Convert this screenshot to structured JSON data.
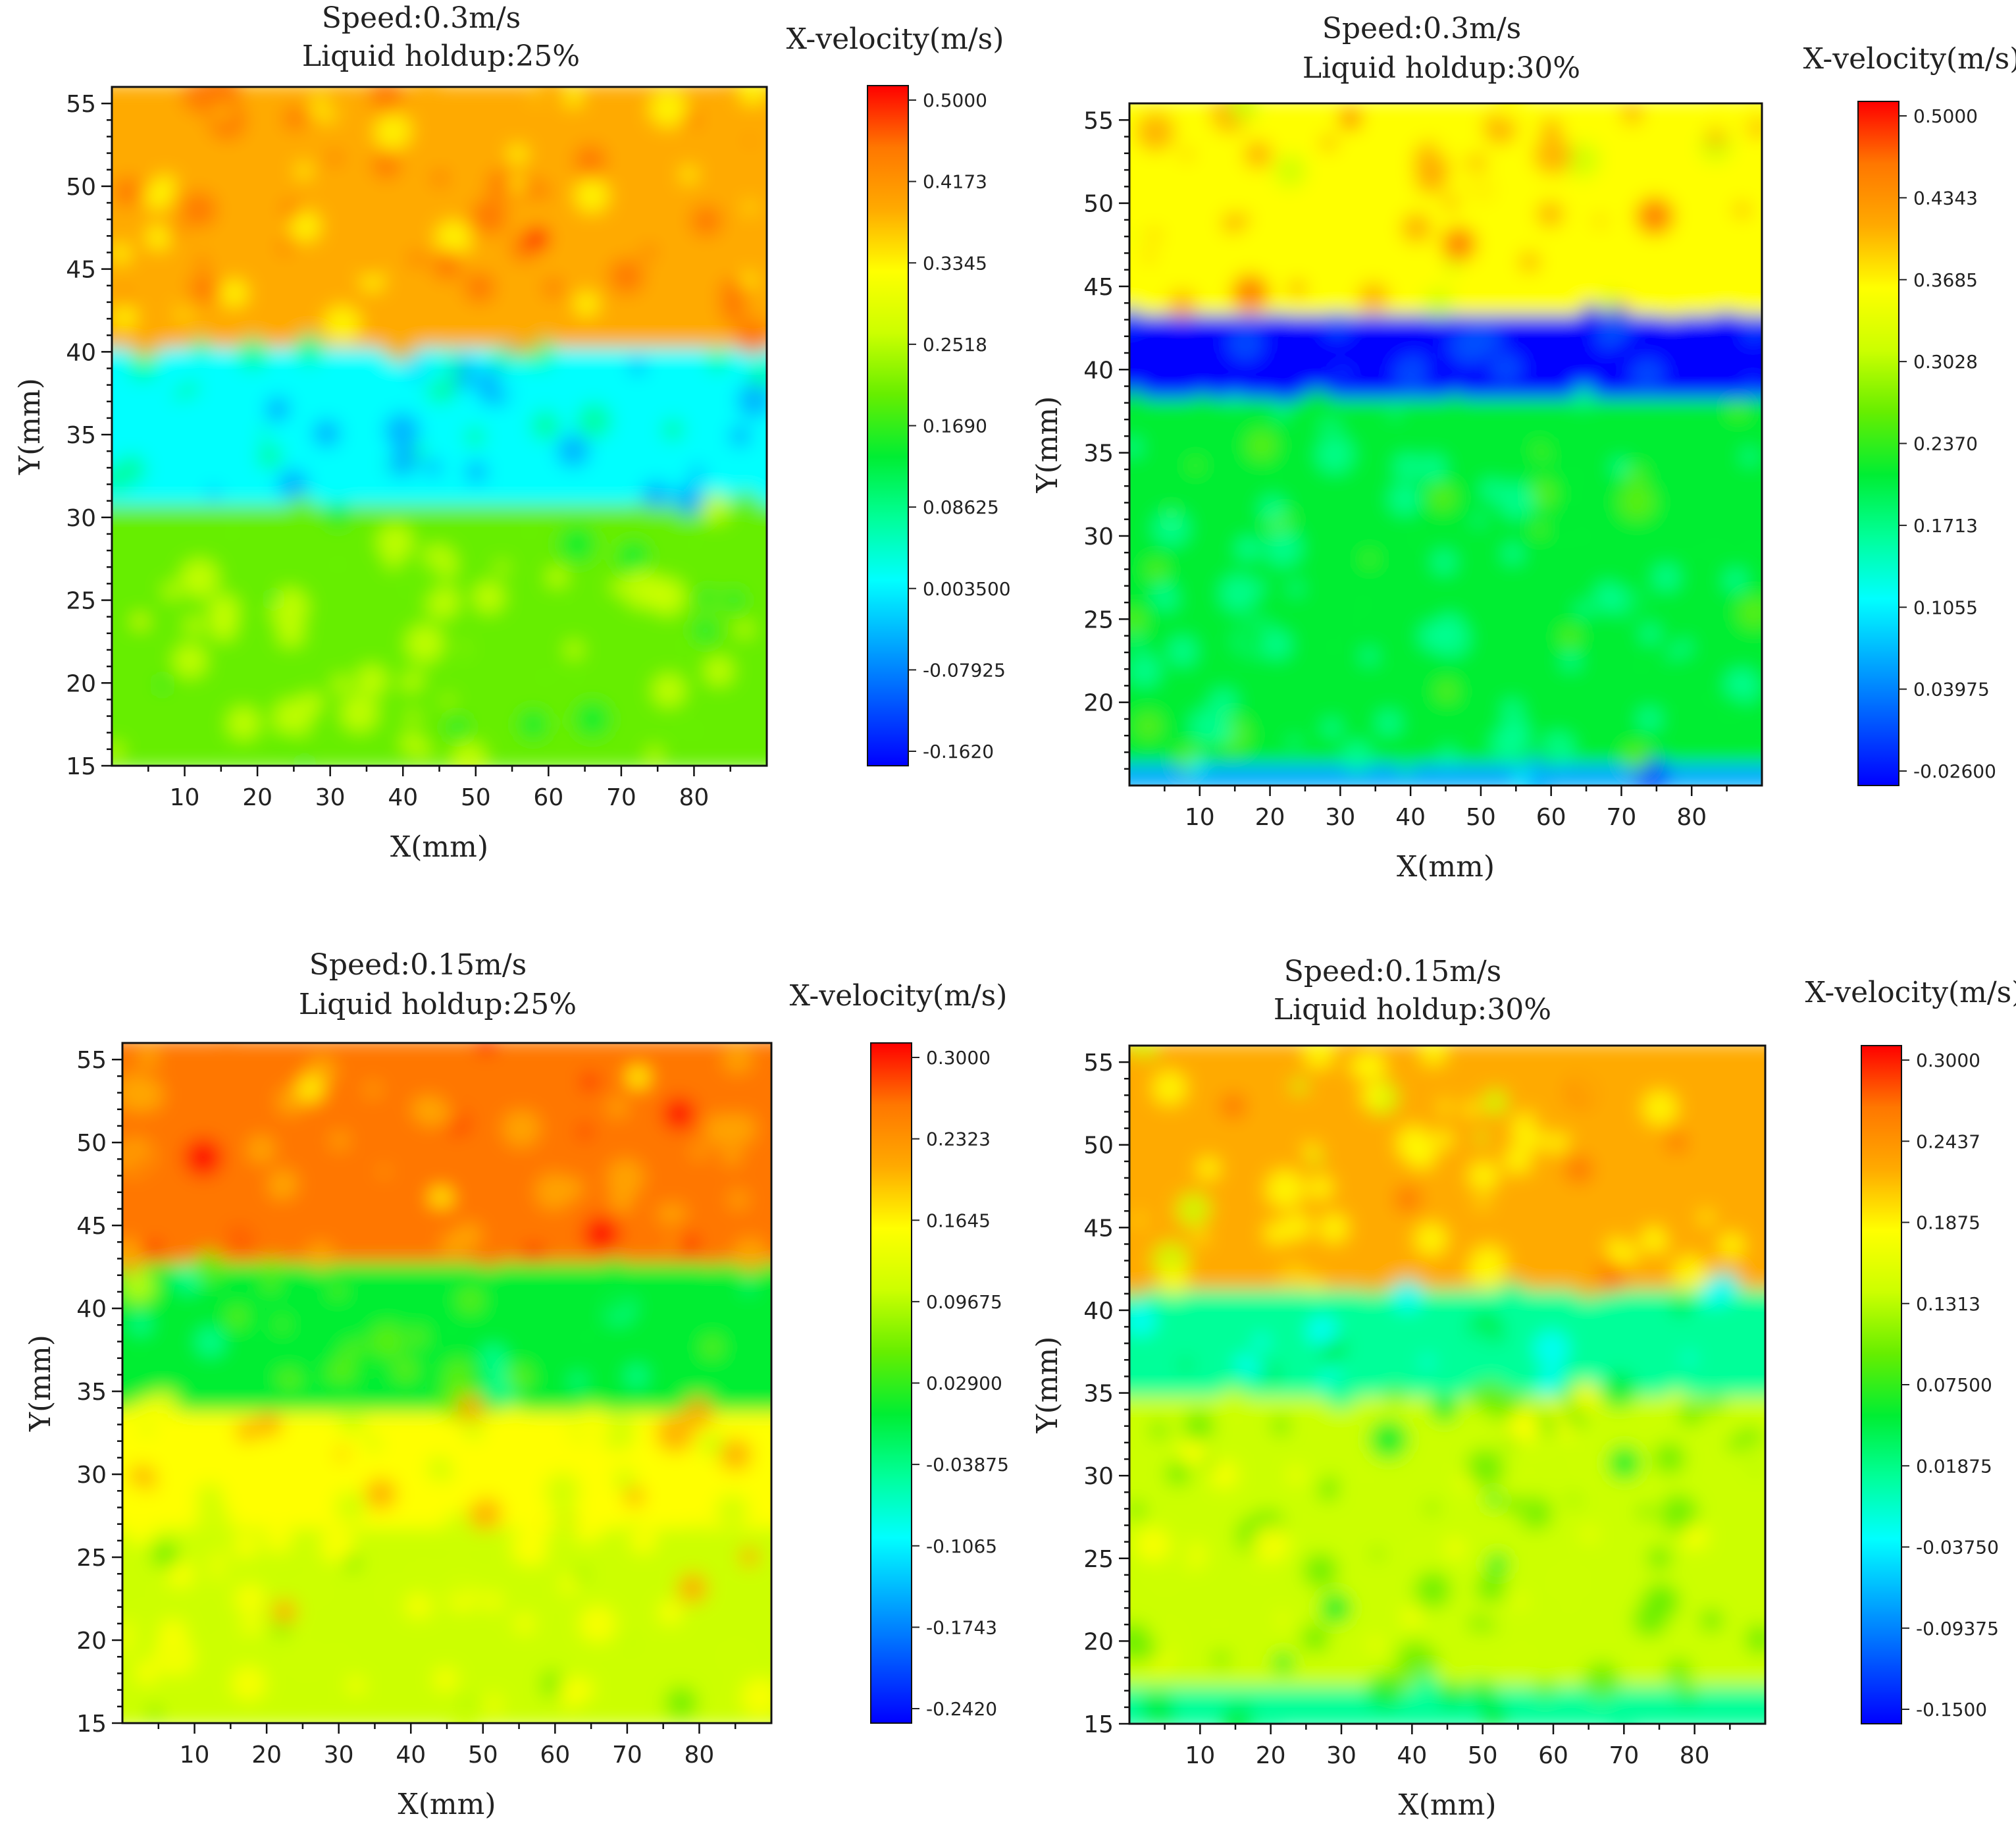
{
  "colors": {
    "scale": [
      "#0000ff",
      "#0055ff",
      "#00aaff",
      "#00ffff",
      "#00ff99",
      "#00ee33",
      "#66ee00",
      "#ccff00",
      "#ffff00",
      "#ffaa00",
      "#ff7700",
      "#ff0000"
    ]
  },
  "chart_data": [
    {
      "type": "heatmap",
      "title_line1": "Speed:0.3m/s",
      "title_line2": "Liquid holdup:25%",
      "xlabel": "X(mm)",
      "ylabel": "Y(mm)",
      "xlim": [
        0,
        90
      ],
      "ylim": [
        15,
        56
      ],
      "xticks": [
        "10",
        "20",
        "30",
        "40",
        "50",
        "60",
        "70",
        "80"
      ],
      "yticks": [
        "15",
        "20",
        "25",
        "30",
        "35",
        "40",
        "45",
        "50",
        "55"
      ],
      "colorbar": {
        "title": "X-velocity(m/s)",
        "ticks": [
          "0.5000",
          "0.4173",
          "0.3345",
          "0.2518",
          "0.1690",
          "0.08625",
          "0.003500",
          "-0.07925",
          "-0.1620"
        ]
      },
      "bands": [
        {
          "from": 15,
          "to": 31,
          "value": 0.22
        },
        {
          "from": 31,
          "to": 40.5,
          "value": 0.03
        },
        {
          "from": 40.5,
          "to": 56,
          "value": 0.4
        }
      ]
    },
    {
      "type": "heatmap",
      "title_line1": "Speed:0.3m/s",
      "title_line2": "Liquid holdup:30%",
      "xlabel": "X(mm)",
      "ylabel": "Y(mm)",
      "xlim": [
        0,
        90
      ],
      "ylim": [
        15,
        56
      ],
      "xticks": [
        "10",
        "20",
        "30",
        "40",
        "50",
        "60",
        "70",
        "80"
      ],
      "yticks": [
        "20",
        "25",
        "30",
        "35",
        "40",
        "45",
        "50",
        "55"
      ],
      "colorbar": {
        "title": "X-velocity(m/s)",
        "ticks": [
          "0.5000",
          "0.4343",
          "0.3685",
          "0.3028",
          "0.2370",
          "0.1713",
          "0.1055",
          "0.03975",
          "-0.02600"
        ]
      },
      "bands": [
        {
          "from": 15,
          "to": 16.5,
          "value": 0.09
        },
        {
          "from": 16.5,
          "to": 38.5,
          "value": 0.2
        },
        {
          "from": 38.5,
          "to": 43.5,
          "value": -0.01
        },
        {
          "from": 43.5,
          "to": 56,
          "value": 0.38
        }
      ]
    },
    {
      "type": "heatmap",
      "title_line1": "Speed:0.15m/s",
      "title_line2": "Liquid holdup:25%",
      "xlabel": "X(mm)",
      "ylabel": "Y(mm)",
      "xlim": [
        0,
        90
      ],
      "ylim": [
        15,
        56
      ],
      "xticks": [
        "10",
        "20",
        "30",
        "40",
        "50",
        "60",
        "70",
        "80"
      ],
      "yticks": [
        "15",
        "20",
        "25",
        "30",
        "35",
        "40",
        "45",
        "50",
        "55"
      ],
      "colorbar": {
        "title": "X-velocity(m/s)",
        "ticks": [
          "0.3000",
          "0.2323",
          "0.1645",
          "0.09675",
          "0.02900",
          "-0.03875",
          "-0.1065",
          "-0.1743",
          "-0.2420"
        ]
      },
      "bands": [
        {
          "from": 15,
          "to": 27,
          "value": 0.12
        },
        {
          "from": 27,
          "to": 34,
          "value": 0.15
        },
        {
          "from": 34,
          "to": 43,
          "value": 0.02
        },
        {
          "from": 43,
          "to": 56,
          "value": 0.23
        }
      ]
    },
    {
      "type": "heatmap",
      "title_line1": "Speed:0.15m/s",
      "title_line2": "Liquid holdup:30%",
      "xlabel": "X(mm)",
      "ylabel": "Y(mm)",
      "xlim": [
        0,
        90
      ],
      "ylim": [
        15,
        56
      ],
      "xticks": [
        "10",
        "20",
        "30",
        "40",
        "50",
        "60",
        "70",
        "80"
      ],
      "yticks": [
        "15",
        "20",
        "25",
        "30",
        "35",
        "40",
        "45",
        "50",
        "55"
      ],
      "colorbar": {
        "title": "X-velocity(m/s)",
        "ticks": [
          "0.3000",
          "0.2437",
          "0.1875",
          "0.1313",
          "0.07500",
          "0.01875",
          "-0.03750",
          "-0.09375",
          "-0.1500"
        ]
      },
      "bands": [
        {
          "from": 15,
          "to": 17.5,
          "value": 0.03
        },
        {
          "from": 17.5,
          "to": 35,
          "value": 0.12
        },
        {
          "from": 35,
          "to": 41.5,
          "value": 0.0
        },
        {
          "from": 41.5,
          "to": 56,
          "value": 0.2
        }
      ]
    }
  ]
}
